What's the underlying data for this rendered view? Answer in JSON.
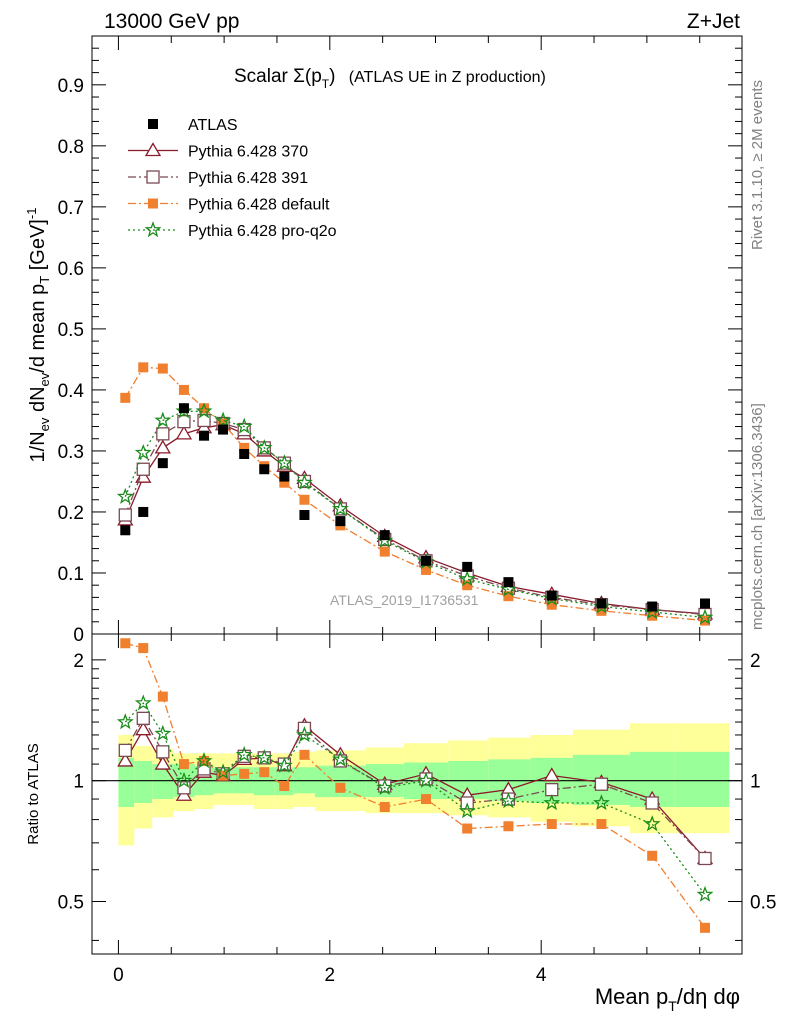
{
  "header": {
    "left": "13000 GeV pp",
    "right": "Z+Jet"
  },
  "plot_title": {
    "main": "Scalar Σ(p",
    "sub": "T",
    "close": ")",
    "extra": "(ATLAS UE in Z production)"
  },
  "y_axis_upper": {
    "pre": "1/N",
    "sub1": "ev",
    "mid": " dN",
    "sub2": "ev",
    "post": "/d mean p",
    "sub3": "T",
    "unit": " [GeV]",
    "sup": "-1"
  },
  "y_axis_lower": "Ratio to ATLAS",
  "x_axis": {
    "pre": "Mean p",
    "sub": "T",
    "post": "/dη dφ"
  },
  "side_right_top": "Rivet 3.1.10, ≥ 2M events",
  "side_right_bottom": "mcplots.cern.ch [arXiv:1306.3436]",
  "watermark": "ATLAS_2019_I1736531",
  "chart_data": [
    {
      "type": "scatter",
      "title": "Scalar Σ(pT) (ATLAS UE in Z production)",
      "xlim": [
        -0.25,
        5.9
      ],
      "ylim": [
        0,
        0.98
      ],
      "x_ticks": [
        "0",
        "2",
        "4"
      ],
      "y_ticks": [
        "0",
        "0.1",
        "0.2",
        "0.3",
        "0.4",
        "0.5",
        "0.6",
        "0.7",
        "0.8",
        "0.9"
      ],
      "x": [
        0.065,
        0.235,
        0.42,
        0.62,
        0.81,
        0.99,
        1.19,
        1.38,
        1.57,
        1.76,
        2.1,
        2.52,
        2.91,
        3.3,
        3.69,
        4.1,
        4.57,
        5.05,
        5.55
      ],
      "series": [
        {
          "name": "ATLAS",
          "color": "#000000",
          "marker": "filled-square",
          "line": "none",
          "values": [
            0.17,
            0.2,
            0.28,
            0.37,
            0.325,
            0.335,
            0.295,
            0.27,
            0.258,
            0.195,
            0.185,
            0.162,
            0.12,
            0.11,
            0.085,
            0.063,
            0.05,
            0.045,
            0.05
          ]
        },
        {
          "name": "Pythia 6.428 370",
          "color": "#8b1a2b",
          "marker": "open-triangle",
          "line": "solid",
          "values": [
            0.187,
            0.257,
            0.305,
            0.328,
            0.338,
            0.343,
            0.328,
            0.3,
            0.275,
            0.255,
            0.21,
            0.16,
            0.125,
            0.1,
            0.078,
            0.065,
            0.05,
            0.04,
            0.033
          ]
        },
        {
          "name": "Pythia 6.428 391",
          "color": "#7a4a52",
          "marker": "open-square",
          "line": "dashdot",
          "values": [
            0.195,
            0.27,
            0.328,
            0.348,
            0.35,
            0.345,
            0.335,
            0.305,
            0.28,
            0.25,
            0.205,
            0.155,
            0.12,
            0.095,
            0.075,
            0.06,
            0.048,
            0.04,
            0.032
          ]
        },
        {
          "name": "Pythia 6.428 default",
          "color": "#f07f2e",
          "marker": "filled-square",
          "line": "dashdot",
          "values": [
            0.387,
            0.437,
            0.435,
            0.4,
            0.37,
            0.345,
            0.305,
            0.275,
            0.248,
            0.22,
            0.178,
            0.135,
            0.105,
            0.08,
            0.062,
            0.048,
            0.038,
            0.03,
            0.022
          ]
        },
        {
          "name": "Pythia 6.428 pro-q2o",
          "color": "#1a8c1a",
          "marker": "open-star",
          "line": "dotted",
          "values": [
            0.225,
            0.297,
            0.35,
            0.365,
            0.365,
            0.35,
            0.34,
            0.305,
            0.28,
            0.248,
            0.205,
            0.153,
            0.118,
            0.09,
            0.073,
            0.058,
            0.045,
            0.036,
            0.027
          ]
        }
      ]
    },
    {
      "type": "line",
      "ylabel": "Ratio to ATLAS",
      "xlim": [
        -0.25,
        5.9
      ],
      "ylim": [
        0.37,
        2.32
      ],
      "x_ticks": [
        "0",
        "2",
        "4"
      ],
      "y_ticks": [
        "0.5",
        "1",
        "2"
      ],
      "reference_line": 1,
      "x": [
        0.065,
        0.235,
        0.42,
        0.62,
        0.81,
        0.99,
        1.19,
        1.38,
        1.57,
        1.76,
        2.1,
        2.52,
        2.91,
        3.3,
        3.69,
        4.1,
        4.57,
        5.05,
        5.55
      ],
      "bin_edges": [
        0.0,
        0.15,
        0.32,
        0.52,
        0.72,
        0.9,
        1.08,
        1.28,
        1.48,
        1.66,
        1.86,
        2.34,
        2.7,
        3.12,
        3.5,
        3.9,
        4.3,
        4.84,
        5.26,
        5.78
      ],
      "band_green": [
        [
          0.86,
          1.14
        ],
        [
          0.88,
          1.12
        ],
        [
          0.9,
          1.1
        ],
        [
          0.91,
          1.1
        ],
        [
          0.92,
          1.09
        ],
        [
          0.93,
          1.08
        ],
        [
          0.93,
          1.08
        ],
        [
          0.92,
          1.08
        ],
        [
          0.92,
          1.08
        ],
        [
          0.93,
          1.08
        ],
        [
          0.91,
          1.09
        ],
        [
          0.91,
          1.1
        ],
        [
          0.9,
          1.11
        ],
        [
          0.9,
          1.12
        ],
        [
          0.89,
          1.13
        ],
        [
          0.88,
          1.14
        ],
        [
          0.87,
          1.16
        ],
        [
          0.86,
          1.18
        ],
        [
          0.86,
          1.18
        ]
      ],
      "band_yellow": [
        [
          0.69,
          1.3
        ],
        [
          0.76,
          1.22
        ],
        [
          0.81,
          1.2
        ],
        [
          0.84,
          1.17
        ],
        [
          0.85,
          1.17
        ],
        [
          0.87,
          1.17
        ],
        [
          0.87,
          1.17
        ],
        [
          0.85,
          1.17
        ],
        [
          0.85,
          1.17
        ],
        [
          0.86,
          1.18
        ],
        [
          0.84,
          1.19
        ],
        [
          0.83,
          1.21
        ],
        [
          0.83,
          1.24
        ],
        [
          0.82,
          1.26
        ],
        [
          0.81,
          1.28
        ],
        [
          0.79,
          1.3
        ],
        [
          0.77,
          1.34
        ],
        [
          0.74,
          1.39
        ],
        [
          0.74,
          1.39
        ]
      ],
      "series": [
        {
          "name": "Pythia 6.428 370",
          "color": "#8b1a2b",
          "marker": "open-triangle",
          "line": "solid",
          "values": [
            1.12,
            1.34,
            1.1,
            0.92,
            1.05,
            1.03,
            1.13,
            1.14,
            1.09,
            1.37,
            1.16,
            0.98,
            1.04,
            0.92,
            0.95,
            1.03,
            0.99,
            0.9,
            0.64
          ]
        },
        {
          "name": "Pythia 6.428 391",
          "color": "#7a4a52",
          "marker": "open-square",
          "line": "dashdot",
          "values": [
            1.19,
            1.43,
            1.18,
            0.96,
            1.07,
            1.04,
            1.15,
            1.14,
            1.1,
            1.35,
            1.12,
            0.97,
            1.01,
            0.88,
            0.9,
            0.95,
            0.98,
            0.88,
            0.64
          ]
        },
        {
          "name": "Pythia 6.428 default",
          "color": "#f07f2e",
          "marker": "filled-square",
          "line": "dashdot",
          "values": [
            2.2,
            2.14,
            1.62,
            1.1,
            1.12,
            1.03,
            1.04,
            1.05,
            0.97,
            1.16,
            0.96,
            0.86,
            0.9,
            0.76,
            0.77,
            0.78,
            0.78,
            0.65,
            0.43
          ]
        },
        {
          "name": "Pythia 6.428 pro-q2o",
          "color": "#1a8c1a",
          "marker": "open-star",
          "line": "dotted",
          "values": [
            1.4,
            1.56,
            1.31,
            1.0,
            1.12,
            1.05,
            1.16,
            1.14,
            1.09,
            1.3,
            1.13,
            0.96,
            1.0,
            0.84,
            0.89,
            0.88,
            0.88,
            0.78,
            0.52
          ]
        }
      ]
    }
  ]
}
